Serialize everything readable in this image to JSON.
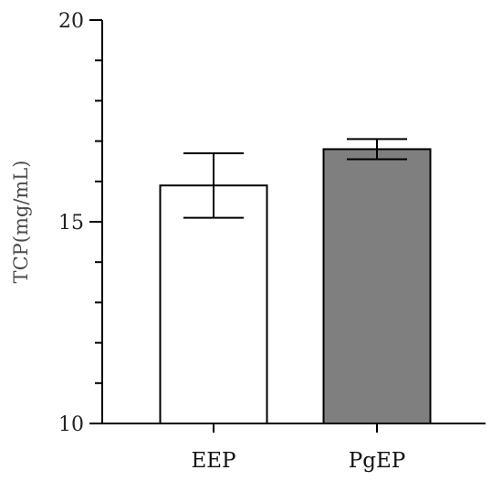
{
  "chart_data": {
    "type": "bar",
    "title": "",
    "xlabel": "",
    "ylabel": "TCP(mg/mL)",
    "ylim": [
      10,
      20
    ],
    "major_ticks": [
      10,
      15,
      20
    ],
    "minor_tick_step": 1,
    "grid": false,
    "legend": "none",
    "categories": [
      "EEP",
      "PgEP"
    ],
    "values": [
      15.9,
      16.8
    ],
    "errors": [
      0.8,
      0.25
    ],
    "bar_fill_colors": [
      "#ffffff",
      "#7f7f7f"
    ],
    "bar_stroke_color": "#000000",
    "axis_color": "#000000"
  }
}
